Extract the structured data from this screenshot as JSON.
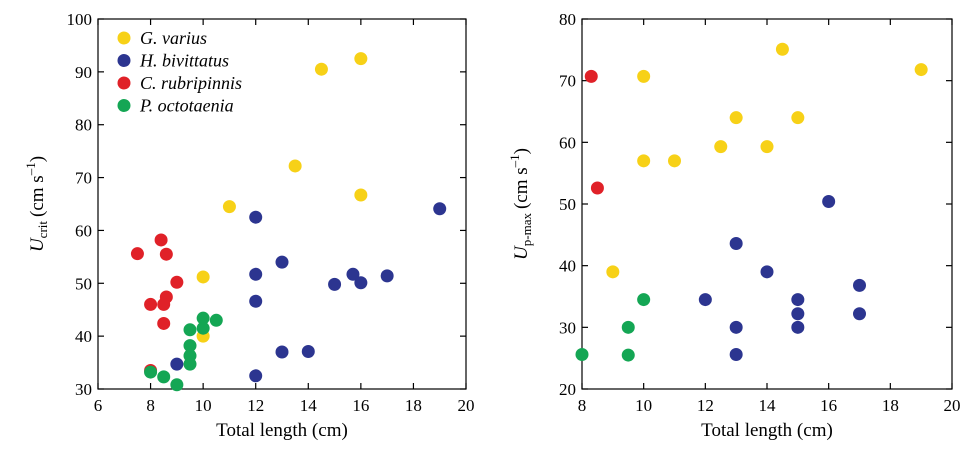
{
  "colors": {
    "G. varius": "#f7d117",
    "H. bivittatus": "#2c3590",
    "C. rubripinnis": "#e02128",
    "P. octotaenia": "#14a654"
  },
  "legend": [
    "G. varius",
    "H. bivittatus",
    "C. rubripinnis",
    "P. octotaenia"
  ],
  "chart_data": [
    {
      "type": "scatter",
      "xlabel": "Total length (cm)",
      "ylabel_main": "U",
      "ylabel_sub": "crit",
      "ylabel_unit_open": "(cm s",
      "ylabel_unit_sup": "–1",
      "ylabel_unit_close": ")",
      "xlim": [
        6,
        20
      ],
      "ylim": [
        30,
        100
      ],
      "xticks": [
        6,
        8,
        10,
        12,
        14,
        16,
        18,
        20
      ],
      "yticks": [
        30,
        40,
        50,
        60,
        70,
        80,
        90,
        100
      ],
      "series": [
        {
          "name": "G. varius",
          "points": [
            [
              10,
              51.2
            ],
            [
              10,
              40
            ],
            [
              11,
              64.5
            ],
            [
              13.5,
              72.2
            ],
            [
              14.5,
              90.5
            ],
            [
              16,
              92.5
            ],
            [
              16,
              66.7
            ]
          ]
        },
        {
          "name": "H. bivittatus",
          "points": [
            [
              9,
              34.7
            ],
            [
              12,
              62.5
            ],
            [
              12,
              51.7
            ],
            [
              12,
              46.6
            ],
            [
              12,
              32.5
            ],
            [
              13,
              54
            ],
            [
              13,
              37
            ],
            [
              14,
              37.1
            ],
            [
              15,
              49.8
            ],
            [
              15.7,
              51.7
            ],
            [
              16,
              50.1
            ],
            [
              17,
              51.4
            ],
            [
              19,
              64.1
            ]
          ]
        },
        {
          "name": "C. rubripinnis",
          "points": [
            [
              7.5,
              55.6
            ],
            [
              8,
              46
            ],
            [
              8,
              33.5
            ],
            [
              8.4,
              58.2
            ],
            [
              8.6,
              55.5
            ],
            [
              8.6,
              47.4
            ],
            [
              8.5,
              46
            ],
            [
              8.5,
              42.4
            ],
            [
              9,
              50.2
            ]
          ]
        },
        {
          "name": "P. octotaenia",
          "points": [
            [
              8,
              33.2
            ],
            [
              8.5,
              32.3
            ],
            [
              9,
              30.8
            ],
            [
              9.5,
              41.2
            ],
            [
              9.5,
              38.2
            ],
            [
              9.5,
              36.3
            ],
            [
              9.5,
              34.7
            ],
            [
              10,
              43.4
            ],
            [
              10,
              41.5
            ],
            [
              10.5,
              43
            ]
          ]
        }
      ]
    },
    {
      "type": "scatter",
      "xlabel": "Total length (cm)",
      "ylabel_main": "U",
      "ylabel_sub": "p-max",
      "ylabel_unit_open": "(cm s",
      "ylabel_unit_sup": "–1",
      "ylabel_unit_close": ")",
      "xlim": [
        8,
        20
      ],
      "ylim": [
        20,
        80
      ],
      "xticks": [
        8,
        10,
        12,
        14,
        16,
        18,
        20
      ],
      "yticks": [
        20,
        30,
        40,
        50,
        60,
        70,
        80
      ],
      "series": [
        {
          "name": "G. varius",
          "points": [
            [
              9,
              39
            ],
            [
              10,
              70.7
            ],
            [
              10,
              57
            ],
            [
              11,
              57
            ],
            [
              12.5,
              59.3
            ],
            [
              13,
              64
            ],
            [
              14,
              59.3
            ],
            [
              14.5,
              75.1
            ],
            [
              15,
              64
            ],
            [
              19,
              71.8
            ]
          ]
        },
        {
          "name": "H. bivittatus",
          "points": [
            [
              12,
              34.5
            ],
            [
              13,
              43.6
            ],
            [
              13,
              30
            ],
            [
              13,
              25.6
            ],
            [
              14,
              39
            ],
            [
              15,
              34.5
            ],
            [
              15,
              32.2
            ],
            [
              15,
              30
            ],
            [
              16,
              50.4
            ],
            [
              17,
              36.8
            ],
            [
              17,
              32.2
            ]
          ]
        },
        {
          "name": "C. rubripinnis",
          "points": [
            [
              8.3,
              70.7
            ],
            [
              8.5,
              52.6
            ]
          ]
        },
        {
          "name": "P. octotaenia",
          "points": [
            [
              8,
              25.6
            ],
            [
              9.5,
              30
            ],
            [
              9.5,
              25.5
            ],
            [
              10,
              34.5
            ]
          ]
        }
      ]
    }
  ]
}
